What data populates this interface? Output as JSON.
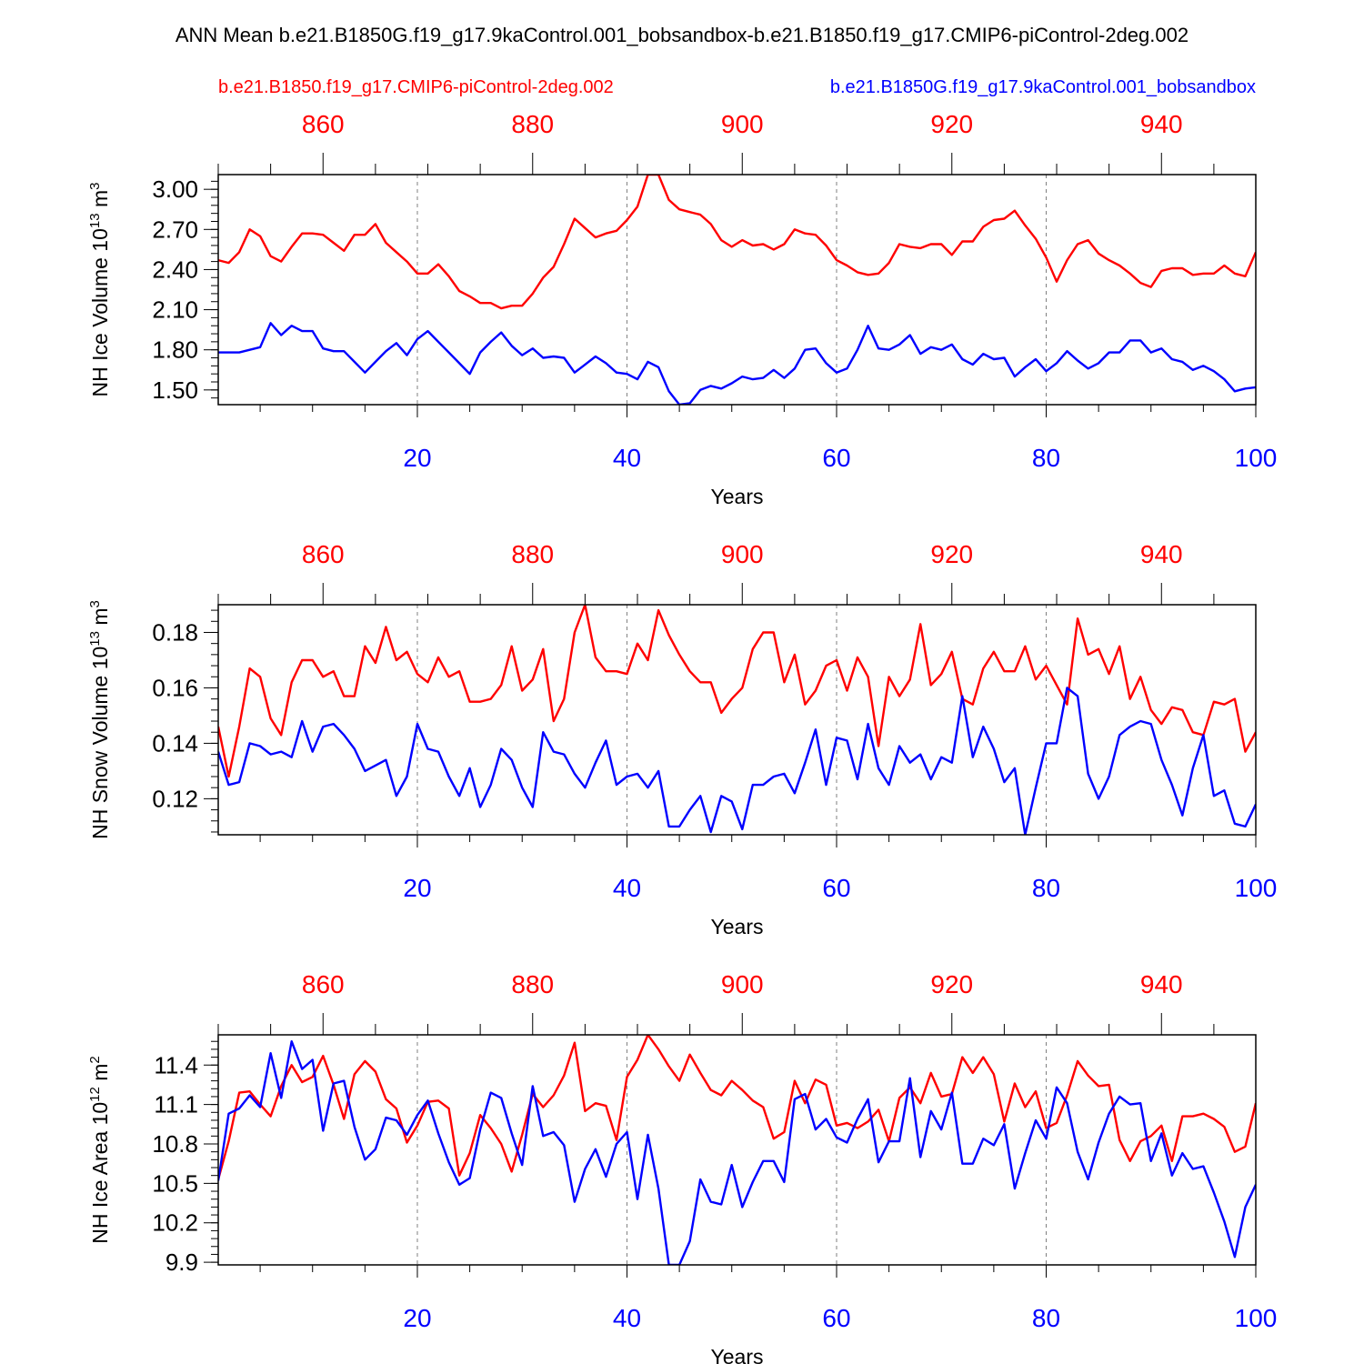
{
  "page_title": "ANN Mean b.e21.B1850G.f19_g17.9kaControl.001_bobsandbox-b.e21.B1850.f19_g17.CMIP6-piControl-2deg.002",
  "legend": {
    "red_label": "b.e21.B1850.f19_g17.CMIP6-piControl-2deg.002",
    "blue_label": "b.e21.B1850G.f19_g17.9kaControl.001_bobsandbox"
  },
  "colors": {
    "red": "#ff0000",
    "blue": "#0000ff",
    "axis": "#000000",
    "grid": "#808080"
  },
  "chart_data": [
    {
      "type": "line",
      "ylabel": "NH Ice Volume 10",
      "ylabel_sup": "13",
      "ylabel_unit": " m",
      "ylabel_unit_sup": "3",
      "xlabel": "Years",
      "xlim": [
        1,
        100
      ],
      "x_top_lim": [
        850,
        949
      ],
      "ylim": [
        1.39,
        3.11
      ],
      "yticks": [
        "1.50",
        "1.80",
        "2.10",
        "2.40",
        "2.70",
        "3.00"
      ],
      "ytick_values": [
        1.5,
        1.8,
        2.1,
        2.4,
        2.7,
        3.0
      ],
      "xticks": [
        "20",
        "40",
        "60",
        "80",
        "100"
      ],
      "xtick_values": [
        20,
        40,
        60,
        80,
        100
      ],
      "x_top_ticks": [
        "860",
        "880",
        "900",
        "920",
        "940"
      ],
      "x_top_tick_values": [
        860,
        880,
        900,
        920,
        940
      ],
      "series": [
        {
          "color": "red",
          "values": [
            2.47,
            2.45,
            2.53,
            2.7,
            2.65,
            2.5,
            2.46,
            2.57,
            2.67,
            2.67,
            2.66,
            2.6,
            2.54,
            2.66,
            2.66,
            2.74,
            2.6,
            2.53,
            2.46,
            2.37,
            2.37,
            2.44,
            2.35,
            2.24,
            2.2,
            2.15,
            2.15,
            2.11,
            2.13,
            2.13,
            2.22,
            2.34,
            2.42,
            2.59,
            2.78,
            2.71,
            2.64,
            2.67,
            2.69,
            2.77,
            2.87,
            3.11,
            3.11,
            2.92,
            2.85,
            2.83,
            2.81,
            2.74,
            2.62,
            2.57,
            2.62,
            2.58,
            2.59,
            2.55,
            2.59,
            2.7,
            2.67,
            2.66,
            2.58,
            2.47,
            2.43,
            2.38,
            2.36,
            2.37,
            2.45,
            2.59,
            2.57,
            2.56,
            2.59,
            2.59,
            2.51,
            2.61,
            2.61,
            2.72,
            2.77,
            2.78,
            2.84,
            2.73,
            2.63,
            2.49,
            2.31,
            2.47,
            2.59,
            2.62,
            2.52,
            2.47,
            2.43,
            2.37,
            2.3,
            2.27,
            2.39,
            2.41,
            2.41,
            2.36,
            2.37,
            2.37,
            2.43,
            2.37,
            2.35,
            2.53
          ]
        },
        {
          "color": "blue",
          "values": [
            1.78,
            1.78,
            1.78,
            1.8,
            1.82,
            2.0,
            1.91,
            1.98,
            1.94,
            1.94,
            1.81,
            1.79,
            1.79,
            1.71,
            1.63,
            1.71,
            1.79,
            1.85,
            1.76,
            1.88,
            1.94,
            1.86,
            1.78,
            1.7,
            1.62,
            1.78,
            1.86,
            1.93,
            1.83,
            1.76,
            1.81,
            1.74,
            1.75,
            1.74,
            1.63,
            1.69,
            1.75,
            1.7,
            1.63,
            1.62,
            1.58,
            1.71,
            1.67,
            1.49,
            1.39,
            1.4,
            1.5,
            1.53,
            1.51,
            1.55,
            1.6,
            1.58,
            1.59,
            1.65,
            1.59,
            1.66,
            1.8,
            1.81,
            1.7,
            1.63,
            1.66,
            1.8,
            1.98,
            1.81,
            1.8,
            1.84,
            1.91,
            1.77,
            1.82,
            1.8,
            1.84,
            1.73,
            1.69,
            1.77,
            1.73,
            1.74,
            1.6,
            1.67,
            1.73,
            1.64,
            1.7,
            1.79,
            1.72,
            1.66,
            1.7,
            1.78,
            1.78,
            1.87,
            1.87,
            1.78,
            1.81,
            1.73,
            1.71,
            1.65,
            1.68,
            1.64,
            1.58,
            1.49,
            1.51,
            1.52
          ]
        }
      ]
    },
    {
      "type": "line",
      "ylabel": "NH Snow Volume 10",
      "ylabel_sup": "13",
      "ylabel_unit": " m",
      "ylabel_unit_sup": "3",
      "xlabel": "Years",
      "xlim": [
        1,
        100
      ],
      "x_top_lim": [
        850,
        949
      ],
      "ylim": [
        0.107,
        0.19
      ],
      "yticks": [
        "0.12",
        "0.14",
        "0.16",
        "0.18"
      ],
      "ytick_values": [
        0.12,
        0.14,
        0.16,
        0.18
      ],
      "xticks": [
        "20",
        "40",
        "60",
        "80",
        "100"
      ],
      "xtick_values": [
        20,
        40,
        60,
        80,
        100
      ],
      "x_top_ticks": [
        "860",
        "880",
        "900",
        "920",
        "940"
      ],
      "x_top_tick_values": [
        860,
        880,
        900,
        920,
        940
      ],
      "series": [
        {
          "color": "red",
          "values": [
            0.146,
            0.128,
            0.146,
            0.167,
            0.164,
            0.149,
            0.143,
            0.162,
            0.17,
            0.17,
            0.164,
            0.166,
            0.157,
            0.157,
            0.175,
            0.169,
            0.182,
            0.17,
            0.173,
            0.165,
            0.162,
            0.171,
            0.164,
            0.166,
            0.155,
            0.155,
            0.156,
            0.161,
            0.175,
            0.159,
            0.163,
            0.174,
            0.148,
            0.156,
            0.18,
            0.19,
            0.171,
            0.166,
            0.166,
            0.165,
            0.176,
            0.17,
            0.188,
            0.179,
            0.172,
            0.166,
            0.162,
            0.162,
            0.151,
            0.156,
            0.16,
            0.174,
            0.18,
            0.18,
            0.162,
            0.172,
            0.154,
            0.159,
            0.168,
            0.17,
            0.159,
            0.171,
            0.164,
            0.139,
            0.164,
            0.157,
            0.163,
            0.183,
            0.161,
            0.165,
            0.173,
            0.156,
            0.154,
            0.167,
            0.173,
            0.166,
            0.166,
            0.175,
            0.163,
            0.168,
            0.161,
            0.154,
            0.185,
            0.172,
            0.174,
            0.165,
            0.175,
            0.156,
            0.164,
            0.152,
            0.147,
            0.153,
            0.152,
            0.144,
            0.143,
            0.155,
            0.154,
            0.156,
            0.137,
            0.144
          ]
        },
        {
          "color": "blue",
          "values": [
            0.137,
            0.125,
            0.126,
            0.14,
            0.139,
            0.136,
            0.137,
            0.135,
            0.148,
            0.137,
            0.146,
            0.147,
            0.143,
            0.138,
            0.13,
            0.132,
            0.134,
            0.121,
            0.128,
            0.147,
            0.138,
            0.137,
            0.128,
            0.121,
            0.131,
            0.117,
            0.125,
            0.138,
            0.134,
            0.124,
            0.117,
            0.144,
            0.137,
            0.136,
            0.129,
            0.124,
            0.133,
            0.141,
            0.125,
            0.128,
            0.129,
            0.124,
            0.13,
            0.11,
            0.11,
            0.116,
            0.121,
            0.108,
            0.121,
            0.119,
            0.109,
            0.125,
            0.125,
            0.128,
            0.129,
            0.122,
            0.133,
            0.145,
            0.125,
            0.142,
            0.141,
            0.127,
            0.147,
            0.131,
            0.125,
            0.139,
            0.133,
            0.136,
            0.127,
            0.135,
            0.133,
            0.157,
            0.135,
            0.146,
            0.138,
            0.126,
            0.131,
            0.107,
            0.124,
            0.14,
            0.14,
            0.16,
            0.157,
            0.129,
            0.12,
            0.128,
            0.143,
            0.146,
            0.148,
            0.147,
            0.134,
            0.125,
            0.114,
            0.131,
            0.143,
            0.121,
            0.123,
            0.111,
            0.11,
            0.118
          ]
        }
      ]
    },
    {
      "type": "line",
      "ylabel": "NH Ice Area 10",
      "ylabel_sup": "12",
      "ylabel_unit": " m",
      "ylabel_unit_sup": "2",
      "xlabel": "Years",
      "xlim": [
        1,
        100
      ],
      "x_top_lim": [
        850,
        949
      ],
      "ylim": [
        9.88,
        11.63
      ],
      "yticks": [
        "9.9",
        "10.2",
        "10.5",
        "10.8",
        "11.1",
        "11.4"
      ],
      "ytick_values": [
        9.9,
        10.2,
        10.5,
        10.8,
        11.1,
        11.4
      ],
      "xticks": [
        "20",
        "40",
        "60",
        "80",
        "100"
      ],
      "xtick_values": [
        20,
        40,
        60,
        80,
        100
      ],
      "x_top_ticks": [
        "860",
        "880",
        "900",
        "920",
        "940"
      ],
      "x_top_tick_values": [
        860,
        880,
        900,
        920,
        940
      ],
      "series": [
        {
          "color": "red",
          "values": [
            10.53,
            10.82,
            11.19,
            11.2,
            11.1,
            11.01,
            11.24,
            11.4,
            11.27,
            11.31,
            11.47,
            11.25,
            10.99,
            11.33,
            11.43,
            11.35,
            11.14,
            11.07,
            10.81,
            10.94,
            11.12,
            11.13,
            11.07,
            10.56,
            10.73,
            11.02,
            10.92,
            10.8,
            10.59,
            10.87,
            11.18,
            11.08,
            11.17,
            11.32,
            11.57,
            11.05,
            11.11,
            11.09,
            10.83,
            11.31,
            11.44,
            11.63,
            11.52,
            11.39,
            11.28,
            11.48,
            11.34,
            11.21,
            11.17,
            11.28,
            11.21,
            11.13,
            11.08,
            10.84,
            10.89,
            11.28,
            11.11,
            11.29,
            11.25,
            10.94,
            10.96,
            10.92,
            10.97,
            11.06,
            10.82,
            11.15,
            11.23,
            11.11,
            11.34,
            11.16,
            11.18,
            11.46,
            11.34,
            11.46,
            11.33,
            10.97,
            11.26,
            11.08,
            11.2,
            10.92,
            10.96,
            11.17,
            11.43,
            11.32,
            11.24,
            11.25,
            10.83,
            10.67,
            10.82,
            10.86,
            10.94,
            10.67,
            11.01,
            11.01,
            11.03,
            10.99,
            10.93,
            10.74,
            10.78,
            11.11
          ]
        },
        {
          "color": "blue",
          "values": [
            10.52,
            11.03,
            11.07,
            11.17,
            11.08,
            11.49,
            11.15,
            11.58,
            11.37,
            11.44,
            10.9,
            11.26,
            11.28,
            10.93,
            10.68,
            10.76,
            11.0,
            10.98,
            10.87,
            11.02,
            11.13,
            10.88,
            10.66,
            10.49,
            10.54,
            10.91,
            11.19,
            11.15,
            10.88,
            10.64,
            11.24,
            10.86,
            10.89,
            10.79,
            10.36,
            10.61,
            10.76,
            10.55,
            10.8,
            10.89,
            10.38,
            10.87,
            10.46,
            9.88,
            9.88,
            10.06,
            10.53,
            10.36,
            10.34,
            10.64,
            10.32,
            10.51,
            10.67,
            10.67,
            10.51,
            11.14,
            11.18,
            10.91,
            10.99,
            10.85,
            10.81,
            10.99,
            11.14,
            10.66,
            10.82,
            10.82,
            11.3,
            10.7,
            11.05,
            10.91,
            11.19,
            10.65,
            10.65,
            10.84,
            10.79,
            10.95,
            10.46,
            10.73,
            10.98,
            10.84,
            11.23,
            11.11,
            10.74,
            10.53,
            10.81,
            11.03,
            11.16,
            11.1,
            11.11,
            10.67,
            10.88,
            10.56,
            10.73,
            10.61,
            10.63,
            10.43,
            10.21,
            9.94,
            10.32,
            10.49
          ]
        }
      ]
    }
  ]
}
